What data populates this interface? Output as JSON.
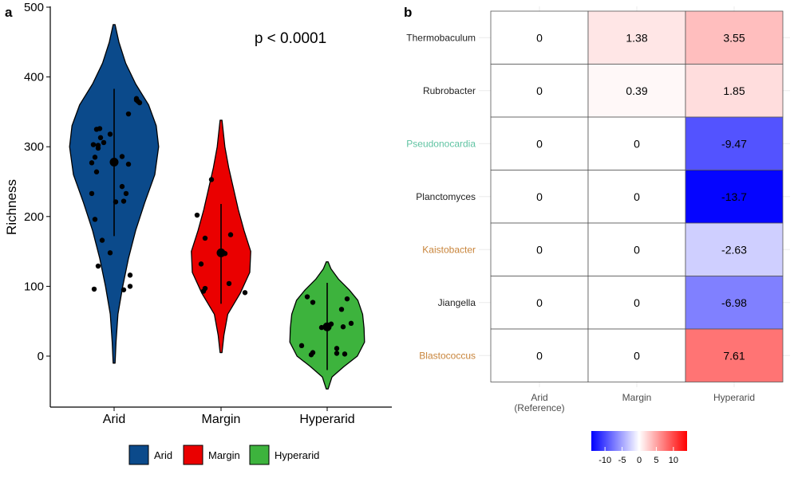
{
  "chart_data": [
    {
      "panel_label": "a",
      "type": "violin",
      "ylabel": "Richness",
      "xlabel": "",
      "ylim": [
        -70,
        500
      ],
      "yticks": [
        0,
        100,
        200,
        300,
        400,
        500
      ],
      "categories": [
        "Arid",
        "Margin",
        "Hyperarid"
      ],
      "annotation": "p < 0.0001",
      "legend": {
        "placement": "bottom",
        "items": [
          "Arid",
          "Margin",
          "Hyperarid"
        ]
      },
      "groups": [
        {
          "name": "Arid",
          "color": "#0b4a8b",
          "range": [
            -10,
            475
          ],
          "mean": 278,
          "whisker": [
            172,
            383
          ],
          "density": [
            [
              -10,
              0.02
            ],
            [
              20,
              0.04
            ],
            [
              60,
              0.08
            ],
            [
              100,
              0.18
            ],
            [
              140,
              0.3
            ],
            [
              180,
              0.45
            ],
            [
              220,
              0.64
            ],
            [
              260,
              0.85
            ],
            [
              300,
              0.93
            ],
            [
              330,
              0.88
            ],
            [
              360,
              0.72
            ],
            [
              390,
              0.45
            ],
            [
              420,
              0.24
            ],
            [
              450,
              0.1
            ],
            [
              475,
              0.02
            ]
          ],
          "points": [
            [
              -0.25,
              96
            ],
            [
              -0.28,
              233
            ],
            [
              -0.2,
              129
            ],
            [
              -0.15,
              166
            ],
            [
              -0.24,
              196
            ],
            [
              -0.22,
              264
            ],
            [
              -0.28,
              277
            ],
            [
              -0.24,
              285
            ],
            [
              -0.2,
              302
            ],
            [
              -0.26,
              303
            ],
            [
              -0.2,
              298
            ],
            [
              -0.17,
              313
            ],
            [
              -0.22,
              325
            ],
            [
              -0.18,
              326
            ],
            [
              -0.13,
              306
            ],
            [
              -0.05,
              318
            ],
            [
              -0.05,
              148
            ],
            [
              0.12,
              95
            ],
            [
              0.2,
              100
            ],
            [
              0.2,
              116
            ],
            [
              0.1,
              286
            ],
            [
              0.18,
              275
            ],
            [
              0.15,
              233
            ],
            [
              0.1,
              243
            ],
            [
              0.02,
              221
            ],
            [
              0.12,
              222
            ],
            [
              0.18,
              347
            ],
            [
              0.28,
              369
            ],
            [
              0.3,
              365
            ],
            [
              0.32,
              363
            ],
            [
              0.28,
              367
            ]
          ]
        },
        {
          "name": "Margin",
          "color": "#ea0000",
          "range": [
            5,
            338
          ],
          "mean": 148,
          "whisker": [
            75,
            218
          ],
          "density": [
            [
              5,
              0.02
            ],
            [
              30,
              0.06
            ],
            [
              60,
              0.14
            ],
            [
              90,
              0.4
            ],
            [
              120,
              0.6
            ],
            [
              150,
              0.62
            ],
            [
              180,
              0.48
            ],
            [
              210,
              0.36
            ],
            [
              240,
              0.26
            ],
            [
              270,
              0.16
            ],
            [
              300,
              0.08
            ],
            [
              338,
              0.02
            ]
          ],
          "points": [
            [
              -0.3,
              202
            ],
            [
              -0.22,
              93
            ],
            [
              -0.2,
              97
            ],
            [
              -0.25,
              132
            ],
            [
              -0.2,
              169
            ],
            [
              -0.12,
              253
            ],
            [
              0.02,
              147
            ],
            [
              0.05,
              147
            ],
            [
              0.12,
              174
            ],
            [
              0.1,
              104
            ],
            [
              0.3,
              91
            ]
          ]
        },
        {
          "name": "Hyperarid",
          "color": "#3db33d",
          "range": [
            -47,
            135
          ],
          "mean": 42,
          "whisker": [
            -20,
            105
          ],
          "density": [
            [
              -47,
              0.02
            ],
            [
              -30,
              0.1
            ],
            [
              -15,
              0.35
            ],
            [
              0,
              0.63
            ],
            [
              20,
              0.78
            ],
            [
              40,
              0.77
            ],
            [
              60,
              0.74
            ],
            [
              80,
              0.64
            ],
            [
              95,
              0.46
            ],
            [
              110,
              0.24
            ],
            [
              125,
              0.08
            ],
            [
              135,
              0.02
            ]
          ],
          "points": [
            [
              -0.32,
              15
            ],
            [
              -0.25,
              85
            ],
            [
              -0.2,
              2
            ],
            [
              -0.18,
              5
            ],
            [
              -0.18,
              77
            ],
            [
              -0.07,
              41
            ],
            [
              0.0,
              42
            ],
            [
              0.05,
              46
            ],
            [
              0.12,
              11
            ],
            [
              0.12,
              4
            ],
            [
              0.2,
              42
            ],
            [
              0.18,
              67
            ],
            [
              0.25,
              82
            ],
            [
              0.22,
              3
            ],
            [
              0.3,
              47
            ]
          ]
        }
      ]
    },
    {
      "panel_label": "b",
      "type": "heatmap",
      "columns": [
        "Arid\n(Reference)",
        "Margin",
        "Hyperarid"
      ],
      "rows": [
        {
          "label": "Thermobaculum",
          "label_color": "#222222",
          "values": [
            0,
            1.38,
            3.55
          ],
          "texts": [
            "0",
            "1.38",
            "3.55"
          ]
        },
        {
          "label": "Rubrobacter",
          "label_color": "#222222",
          "values": [
            0,
            0.39,
            1.85
          ],
          "texts": [
            "0",
            "0.39",
            "1.85"
          ]
        },
        {
          "label": "Pseudonocardia",
          "label_color": "#5fc3a2",
          "values": [
            0,
            0,
            -9.47
          ],
          "texts": [
            "0",
            "0",
            "-9.47"
          ]
        },
        {
          "label": "Planctomyces",
          "label_color": "#222222",
          "values": [
            0,
            0,
            -13.7
          ],
          "texts": [
            "0",
            "0",
            "-13.7"
          ]
        },
        {
          "label": "Kaistobacter",
          "label_color": "#c8843a",
          "values": [
            0,
            0,
            -2.63
          ],
          "texts": [
            "0",
            "0",
            "-2.63"
          ]
        },
        {
          "label": "Jiangella",
          "label_color": "#222222",
          "values": [
            0,
            0,
            -6.98
          ],
          "texts": [
            "0",
            "0",
            "-6.98"
          ]
        },
        {
          "label": "Blastococcus",
          "label_color": "#c8843a",
          "values": [
            0,
            0,
            7.61
          ],
          "texts": [
            "0",
            "0",
            "7.61"
          ]
        }
      ],
      "colorbar": {
        "range": [
          -14,
          14
        ],
        "ticks": [
          -10,
          -5,
          0,
          5,
          10
        ],
        "low_color": "#0000ff",
        "mid_color": "#ffffff",
        "high_color": "#ff0000"
      }
    }
  ]
}
